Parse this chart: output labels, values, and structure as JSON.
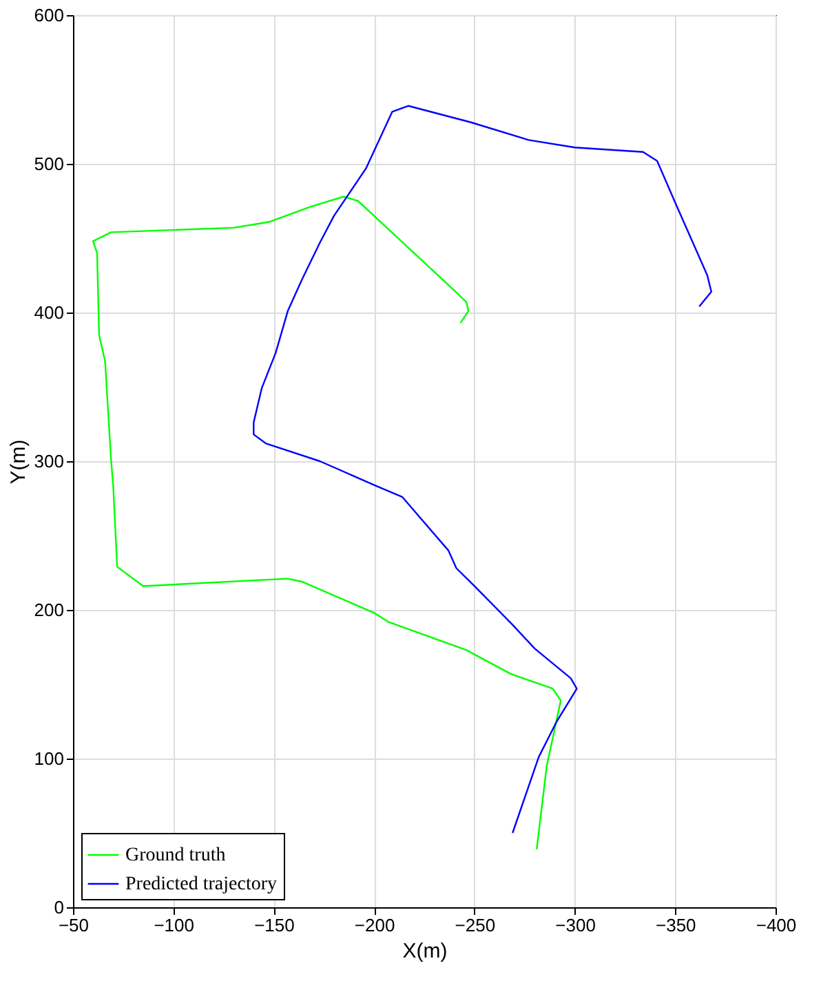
{
  "chart_data": {
    "type": "line",
    "xlabel": "X(m)",
    "ylabel": "Y(m)",
    "xlim": [
      -50,
      -400
    ],
    "xticks": [
      -50,
      -100,
      -150,
      -200,
      -250,
      -300,
      -350,
      -400
    ],
    "ylim": [
      0,
      600
    ],
    "yticks": [
      0,
      100,
      200,
      300,
      400,
      500,
      600
    ],
    "grid": true,
    "legend": "bottom left",
    "marker": "none",
    "line_style": "solid",
    "series": [
      {
        "name": "Ground truth",
        "color": "#00ff00",
        "x": [
          -281,
          -286,
          -293,
          -289,
          -268,
          -246,
          -207,
          -200,
          -164,
          -157,
          -85,
          -72,
          -70,
          -69,
          -66,
          -63,
          -62,
          -60,
          -69,
          -130,
          -148,
          -168,
          -185,
          -192,
          -200,
          -239,
          -246,
          -247,
          -243
        ],
        "values": [
          39,
          95,
          139,
          147,
          157,
          173,
          192,
          198,
          219,
          221,
          216,
          229,
          284,
          300,
          367,
          385,
          440,
          448,
          454,
          457,
          461,
          471,
          478,
          475,
          465,
          416,
          407,
          401,
          393
        ]
      },
      {
        "name": "Predicted trajectory",
        "color": "#0000ff",
        "x": [
          -269,
          -282,
          -291,
          -301,
          -298,
          -280,
          -269,
          -250,
          -241,
          -237,
          -214,
          -200,
          -173,
          -146,
          -140,
          -140,
          -144,
          -151,
          -157,
          -164,
          -173,
          -180,
          -196,
          -209,
          -217,
          -248,
          -277,
          -300,
          -334,
          -341,
          -350,
          -366,
          -368,
          -362
        ],
        "values": [
          50,
          101,
          125,
          147,
          154,
          174,
          190,
          216,
          228,
          240,
          276,
          284,
          300,
          312,
          318,
          326,
          349,
          373,
          401,
          422,
          447,
          465,
          497,
          535,
          539,
          528,
          516,
          511,
          508,
          502,
          474,
          425,
          414,
          404
        ]
      }
    ]
  }
}
